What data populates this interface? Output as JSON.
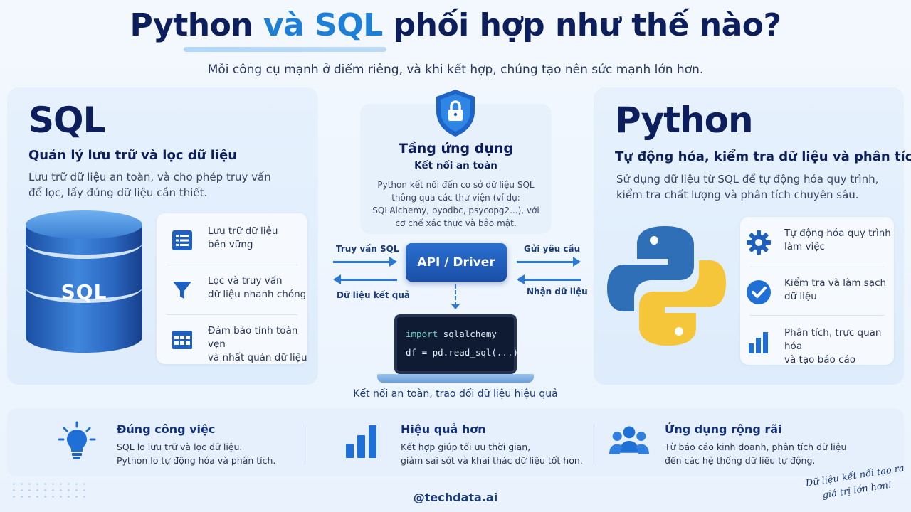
{
  "title": {
    "part1": "Python",
    "conj": "và",
    "part2": "SQL",
    "part3": "phối hợp như thế nào?"
  },
  "subtitle": "Mỗi công cụ mạnh ở điểm riêng, và khi kết hợp, chúng tạo nên sức mạnh lớn hơn.",
  "sql": {
    "heading": "SQL",
    "subheading": "Quản lý lưu trữ và lọc dữ liệu",
    "description": "Lưu trữ dữ liệu an toàn, và cho phép truy vấn để lọc, lấy đúng dữ liệu cần thiết.",
    "db_label": "SQL",
    "features": [
      {
        "icon": "list-icon",
        "text": "Lưu trữ dữ liệu\nbền vững"
      },
      {
        "icon": "filter-icon",
        "text": "Lọc và truy vấn\ndữ liệu nhanh chóng"
      },
      {
        "icon": "table-icon",
        "text": "Đảm bảo tính toàn vẹn\nvà nhất quán dữ liệu"
      }
    ]
  },
  "center": {
    "title": "Tầng ứng dụng",
    "subtitle": "Kết nối an toàn",
    "description": "Python kết nối đến cơ sở dữ liệu SQL thông qua các thư viện (ví dụ: SQLAlchemy, pyodbc, psycopg2...), với cơ chế xác thực và bảo mật.",
    "api_label": "API / Driver",
    "left_top": "Truy vấn SQL",
    "left_bottom": "Dữ liệu kết quả",
    "right_top": "Gửi yêu cầu",
    "right_bottom": "Nhận dữ liệu",
    "code_line1_kw": "import",
    "code_line1_rest": " sqlalchemy",
    "code_line2": "df = pd.read_sql(...)",
    "caption": "Kết nối an toàn, trao đổi dữ liệu hiệu quả"
  },
  "python": {
    "heading": "Python",
    "subheading": "Tự động hóa, kiểm tra dữ liệu và phân tích",
    "description": "Sử dụng dữ liệu từ SQL để tự động hóa quy trình, kiểm tra chất lượng và phân tích chuyên sâu.",
    "features": [
      {
        "icon": "gear-icon",
        "text": "Tự động hóa quy trình\nlàm việc"
      },
      {
        "icon": "check-circle-icon",
        "text": "Kiểm tra và làm sạch\ndữ liệu"
      },
      {
        "icon": "bar-chart-icon",
        "text": "Phân tích, trực quan hóa\nvà tạo báo cáo"
      }
    ]
  },
  "bottom": [
    {
      "icon": "lightbulb-icon",
      "title": "Đúng công việc",
      "text": "SQL lo lưu trữ và lọc dữ liệu.\nPython lo tự động hóa và phân tích."
    },
    {
      "icon": "bar-chart-icon",
      "title": "Hiệu quả hơn",
      "text": "Kết hợp giúp tối ưu thời gian,\ngiảm sai sót và khai thác dữ liệu tốt hơn."
    },
    {
      "icon": "users-icon",
      "title": "Ứng dụng rộng rãi",
      "text": "Từ báo cáo kinh doanh, phân tích dữ liệu\nđến các hệ thống dữ liệu tự động."
    }
  ],
  "handle": "@techdata.ai",
  "signature": "Dữ liệu kết nối tạo ra giá trị lớn hơn!",
  "colors": {
    "navy": "#0c1e5b",
    "accent": "#1e7fd6",
    "python_yellow": "#f5c53a",
    "python_blue": "#2f6fb8"
  }
}
